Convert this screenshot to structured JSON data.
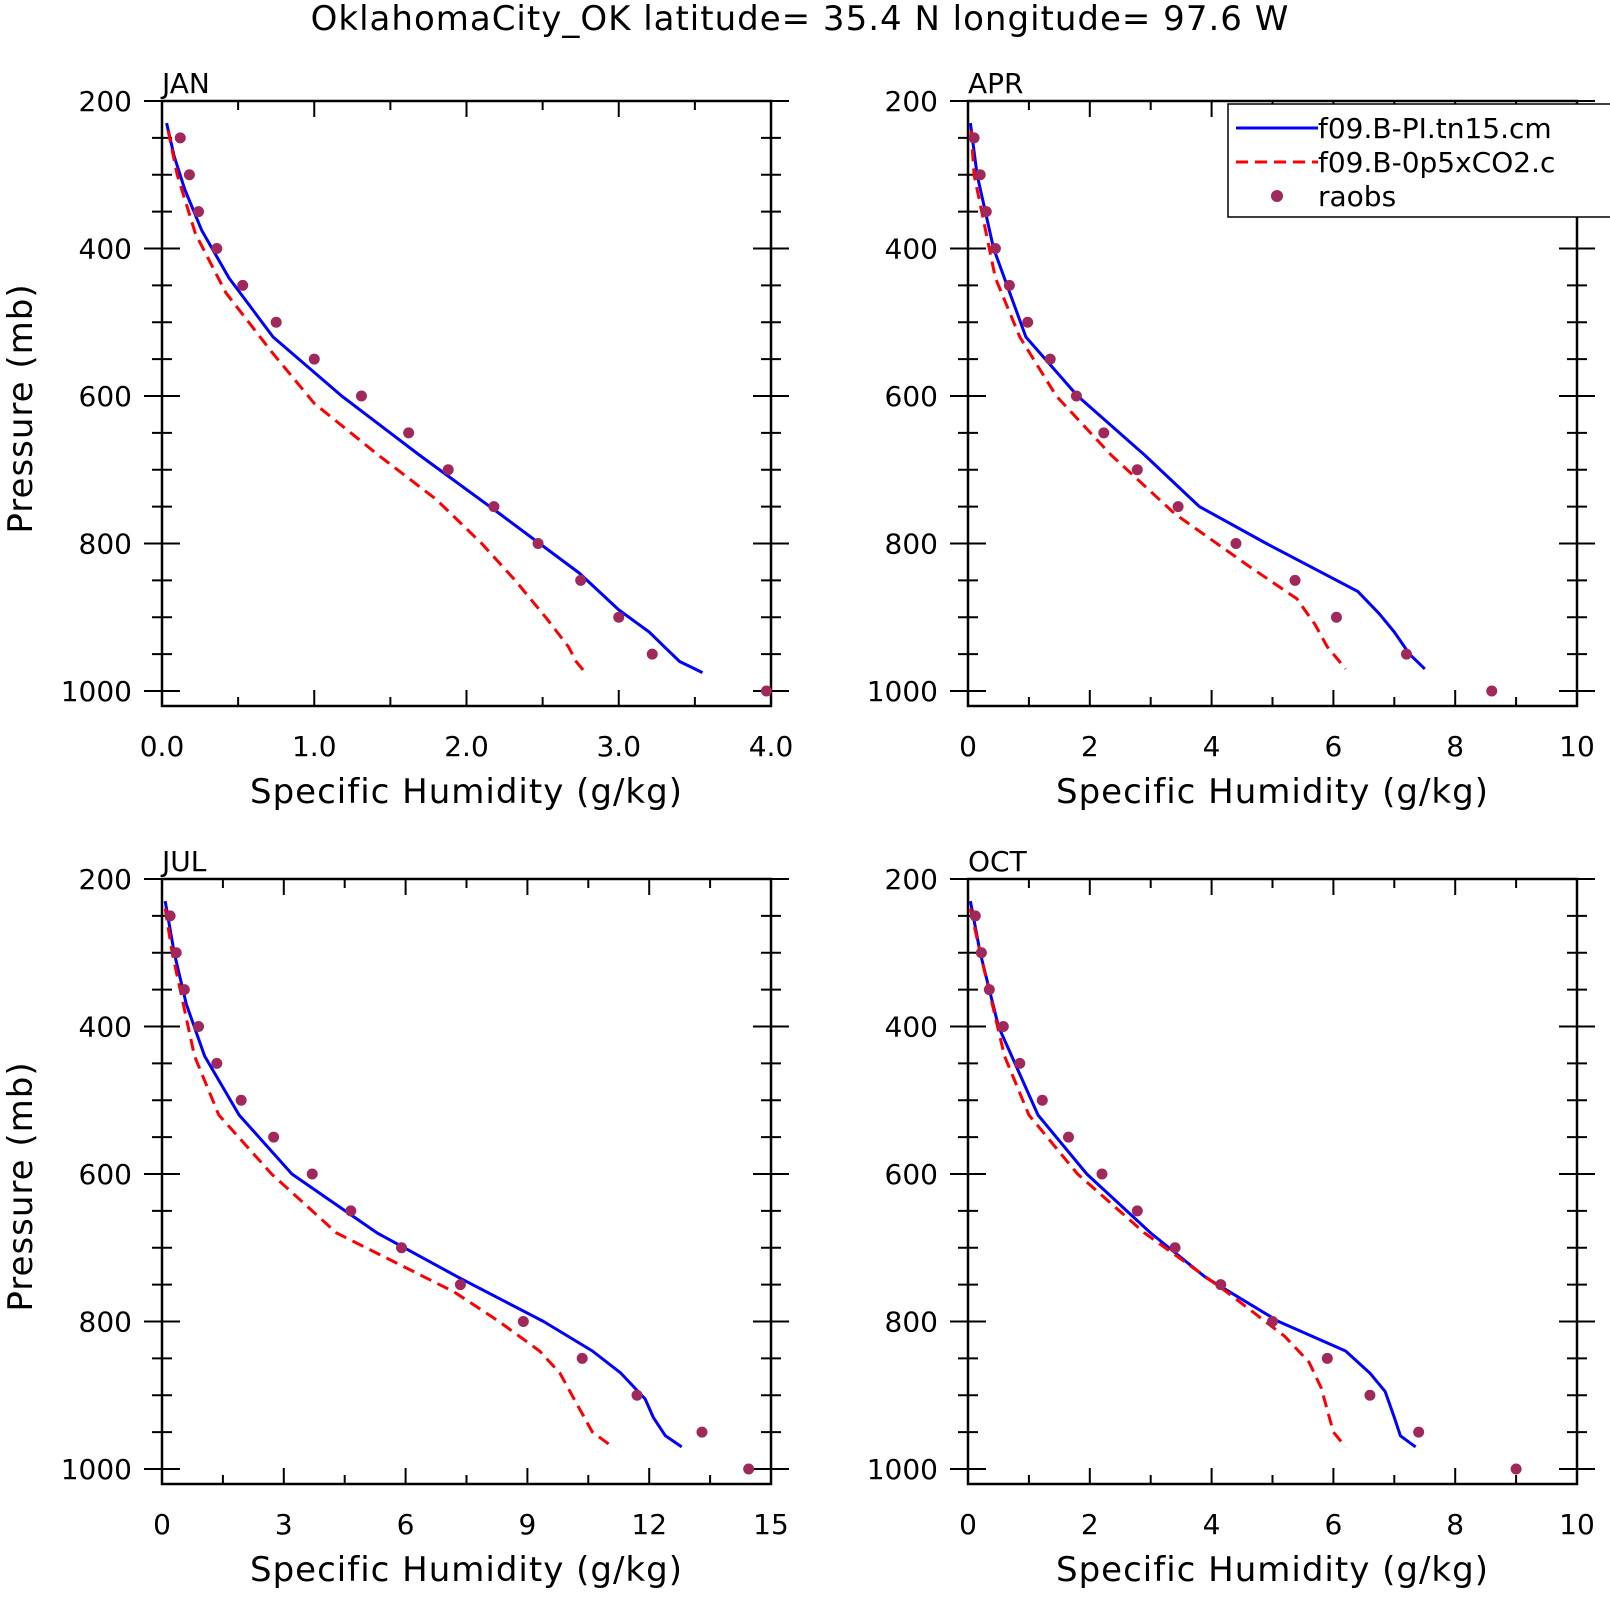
{
  "title": "OklahomaCity_OK  latitude= 35.4 N longitude= 97.6 W",
  "legend": {
    "entries": [
      {
        "label": "f09.B-PI.tn15.cm",
        "color": "#0000ff",
        "style": "solid"
      },
      {
        "label": "f09.B-0p5xCO2.c",
        "color": "#ff0000",
        "style": "dashed"
      },
      {
        "label": "raobs",
        "color": "#a0285a",
        "style": "marker"
      }
    ]
  },
  "colors": {
    "series1": "#0000ff",
    "series2": "#ff0000",
    "obs": "#a0285a"
  },
  "chart_data": [
    {
      "type": "line",
      "panel": "JAN",
      "xlabel": "Specific Humidity (g/kg)",
      "ylabel": "Pressure (mb)",
      "xlim": [
        0,
        4
      ],
      "ylim": [
        200,
        1000
      ],
      "y_inverted": true,
      "xticks": [
        0,
        1,
        2,
        3,
        4
      ],
      "xtick_labels": [
        "0.0",
        "1.0",
        "2.0",
        "3.0",
        "4.0"
      ],
      "yticks": [
        200,
        400,
        600,
        800,
        1000
      ],
      "ytick_labels": [
        "200",
        "400",
        "600",
        "800",
        "1000"
      ],
      "series": [
        {
          "name": "f09.B-PI.tn15.cm",
          "pressure": [
            230,
            275,
            320,
            375,
            440,
            520,
            600,
            680,
            760,
            840,
            890,
            920,
            940,
            960,
            975
          ],
          "values": [
            0.03,
            0.08,
            0.15,
            0.26,
            0.44,
            0.73,
            1.18,
            1.69,
            2.22,
            2.74,
            3.0,
            3.2,
            3.3,
            3.4,
            3.55
          ]
        },
        {
          "name": "f09.B-0p5xCO2.c",
          "pressure": [
            240,
            300,
            380,
            460,
            540,
            610,
            680,
            740,
            800,
            850,
            900,
            940,
            960,
            975
          ],
          "values": [
            0.04,
            0.1,
            0.22,
            0.42,
            0.72,
            1.0,
            1.42,
            1.8,
            2.1,
            2.32,
            2.52,
            2.67,
            2.72,
            2.78
          ]
        },
        {
          "name": "raobs",
          "pressure": [
            250,
            300,
            350,
            400,
            450,
            500,
            550,
            600,
            650,
            700,
            750,
            800,
            850,
            900,
            950,
            1000
          ],
          "values": [
            0.12,
            0.18,
            0.24,
            0.36,
            0.53,
            0.75,
            1.0,
            1.31,
            1.62,
            1.88,
            2.18,
            2.47,
            2.75,
            3.0,
            3.22,
            3.97
          ]
        }
      ]
    },
    {
      "type": "line",
      "panel": "APR",
      "xlabel": "Specific Humidity (g/kg)",
      "ylabel": "",
      "xlim": [
        0,
        10
      ],
      "ylim": [
        200,
        1000
      ],
      "y_inverted": true,
      "xticks": [
        0,
        2,
        4,
        6,
        8,
        10
      ],
      "xtick_labels": [
        "0",
        "2",
        "4",
        "6",
        "8",
        "10"
      ],
      "yticks": [
        200,
        400,
        600,
        800,
        1000
      ],
      "ytick_labels": [
        "200",
        "400",
        "600",
        "800",
        "1000"
      ],
      "series": [
        {
          "name": "f09.B-PI.tn15.cm",
          "pressure": [
            230,
            300,
            400,
            520,
            600,
            680,
            750,
            800,
            865,
            895,
            920,
            950,
            970
          ],
          "values": [
            0.04,
            0.15,
            0.42,
            0.95,
            1.8,
            2.9,
            3.8,
            4.9,
            6.4,
            6.75,
            7.0,
            7.25,
            7.5
          ]
        },
        {
          "name": "f09.B-0p5xCO2.c",
          "pressure": [
            240,
            300,
            440,
            520,
            600,
            680,
            760,
            830,
            875,
            910,
            940,
            960,
            970
          ],
          "values": [
            0.05,
            0.1,
            0.45,
            0.85,
            1.45,
            2.35,
            3.4,
            4.6,
            5.4,
            5.7,
            5.9,
            6.1,
            6.2
          ]
        },
        {
          "name": "raobs",
          "pressure": [
            250,
            300,
            350,
            400,
            450,
            500,
            550,
            600,
            650,
            700,
            750,
            800,
            850,
            900,
            950,
            1000
          ],
          "values": [
            0.1,
            0.2,
            0.3,
            0.45,
            0.68,
            0.98,
            1.35,
            1.78,
            2.23,
            2.78,
            3.45,
            4.4,
            5.37,
            6.05,
            7.2,
            8.6
          ]
        }
      ]
    },
    {
      "type": "line",
      "panel": "JUL",
      "xlabel": "Specific Humidity (g/kg)",
      "ylabel": "Pressure (mb)",
      "xlim": [
        0,
        15
      ],
      "ylim": [
        200,
        1000
      ],
      "y_inverted": true,
      "xticks": [
        0,
        3,
        6,
        9,
        12,
        15
      ],
      "xtick_labels": [
        "0",
        "3",
        "6",
        "9",
        "12",
        "15"
      ],
      "yticks": [
        200,
        400,
        600,
        800,
        1000
      ],
      "ytick_labels": [
        "200",
        "400",
        "600",
        "800",
        "1000"
      ],
      "series": [
        {
          "name": "f09.B-PI.tn15.cm",
          "pressure": [
            230,
            300,
            370,
            440,
            520,
            600,
            680,
            740,
            800,
            840,
            870,
            905,
            930,
            955,
            970
          ],
          "values": [
            0.08,
            0.3,
            0.6,
            1.05,
            1.9,
            3.2,
            5.3,
            7.3,
            9.4,
            10.6,
            11.3,
            11.9,
            12.1,
            12.4,
            12.8
          ]
        },
        {
          "name": "f09.B-0p5xCO2.c",
          "pressure": [
            240,
            300,
            440,
            520,
            600,
            680,
            760,
            800,
            840,
            870,
            910,
            950,
            970
          ],
          "values": [
            0.08,
            0.25,
            0.8,
            1.4,
            2.7,
            4.3,
            7.2,
            8.3,
            9.3,
            9.8,
            10.2,
            10.6,
            11.1
          ]
        },
        {
          "name": "raobs",
          "pressure": [
            250,
            300,
            350,
            400,
            450,
            500,
            550,
            600,
            650,
            700,
            750,
            800,
            850,
            900,
            950,
            1000
          ],
          "values": [
            0.2,
            0.35,
            0.55,
            0.9,
            1.35,
            1.95,
            2.75,
            3.7,
            4.65,
            5.9,
            7.35,
            8.9,
            10.35,
            11.7,
            13.3,
            14.45
          ]
        }
      ]
    },
    {
      "type": "line",
      "panel": "OCT",
      "xlabel": "Specific Humidity (g/kg)",
      "ylabel": "",
      "xlim": [
        0,
        10
      ],
      "ylim": [
        200,
        1000
      ],
      "y_inverted": true,
      "xticks": [
        0,
        2,
        4,
        6,
        8,
        10
      ],
      "xtick_labels": [
        "0",
        "2",
        "4",
        "6",
        "8",
        "10"
      ],
      "yticks": [
        200,
        400,
        600,
        800,
        1000
      ],
      "ytick_labels": [
        "200",
        "400",
        "600",
        "800",
        "1000"
      ],
      "series": [
        {
          "name": "f09.B-PI.tn15.cm",
          "pressure": [
            230,
            300,
            400,
            520,
            600,
            680,
            740,
            800,
            840,
            870,
            895,
            930,
            955,
            970
          ],
          "values": [
            0.04,
            0.2,
            0.5,
            1.15,
            1.95,
            3.0,
            3.9,
            5.1,
            6.2,
            6.6,
            6.85,
            7.0,
            7.1,
            7.35
          ]
        },
        {
          "name": "f09.B-0p5xCO2.c",
          "pressure": [
            240,
            300,
            440,
            520,
            600,
            680,
            760,
            820,
            855,
            890,
            920,
            950,
            970
          ],
          "values": [
            0.04,
            0.2,
            0.6,
            1.0,
            1.8,
            2.9,
            4.25,
            5.2,
            5.6,
            5.8,
            5.9,
            6.0,
            6.2
          ]
        },
        {
          "name": "raobs",
          "pressure": [
            250,
            300,
            350,
            400,
            450,
            500,
            550,
            600,
            650,
            700,
            750,
            800,
            850,
            900,
            950,
            1000
          ],
          "values": [
            0.12,
            0.22,
            0.35,
            0.58,
            0.85,
            1.22,
            1.65,
            2.2,
            2.78,
            3.4,
            4.15,
            5.0,
            5.9,
            6.6,
            7.4,
            9.0
          ]
        }
      ]
    }
  ]
}
